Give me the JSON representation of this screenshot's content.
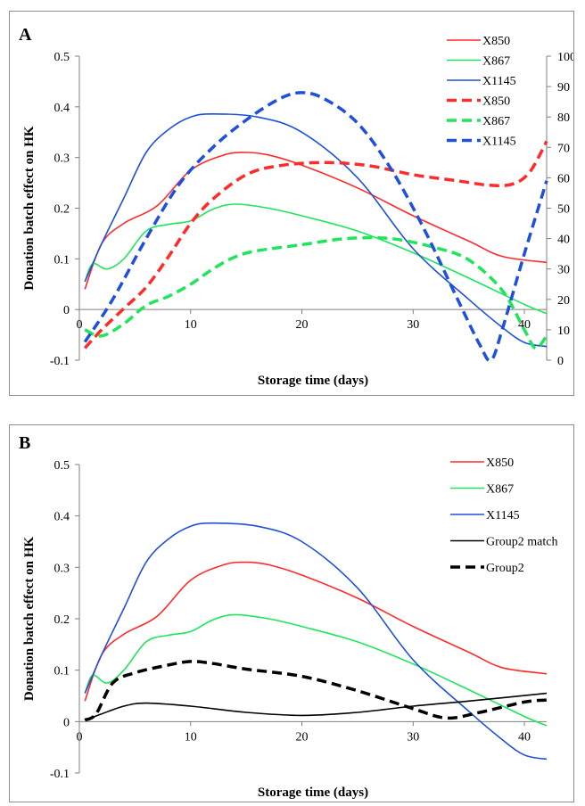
{
  "chart_data": [
    {
      "panel_label": "A",
      "type": "line",
      "xlabel": "Storage time (days)",
      "ylabel": "Donation batch effect on HK",
      "xlim": [
        0,
        42
      ],
      "ylim": [
        -0.1,
        0.5
      ],
      "y2lim": [
        0,
        100
      ],
      "x_ticks": [
        "0",
        "10",
        "20",
        "30",
        "40"
      ],
      "y_ticks": [
        "-0.1",
        "0",
        "0.1",
        "0.2",
        "0.3",
        "0.4",
        "0.5"
      ],
      "y2_ticks": [
        "0",
        "10",
        "20",
        "30",
        "40",
        "50",
        "60",
        "70",
        "80",
        "90",
        "100"
      ],
      "grid": false,
      "legend_position": "top-right",
      "series": [
        {
          "name": "X850",
          "axis": "left",
          "style": "solid",
          "color": "#ff2a2a",
          "points": [
            [
              0.5,
              0.04
            ],
            [
              2,
              0.13
            ],
            [
              4,
              0.17
            ],
            [
              7,
              0.205
            ],
            [
              10,
              0.275
            ],
            [
              13,
              0.305
            ],
            [
              15,
              0.31
            ],
            [
              17,
              0.305
            ],
            [
              20,
              0.285
            ],
            [
              25,
              0.24
            ],
            [
              30,
              0.185
            ],
            [
              35,
              0.135
            ],
            [
              38,
              0.105
            ],
            [
              42,
              0.093
            ]
          ]
        },
        {
          "name": "X867",
          "axis": "left",
          "style": "solid",
          "color": "#1ee65a",
          "points": [
            [
              0.5,
              0.055
            ],
            [
              1.2,
              0.09
            ],
            [
              2.5,
              0.08
            ],
            [
              4,
              0.1
            ],
            [
              6,
              0.155
            ],
            [
              8,
              0.168
            ],
            [
              10,
              0.175
            ],
            [
              12,
              0.198
            ],
            [
              14,
              0.208
            ],
            [
              17,
              0.2
            ],
            [
              20,
              0.185
            ],
            [
              25,
              0.155
            ],
            [
              30,
              0.112
            ],
            [
              35,
              0.062
            ],
            [
              40,
              0.01
            ],
            [
              42,
              -0.008
            ]
          ]
        },
        {
          "name": "X1145",
          "axis": "left",
          "style": "solid",
          "color": "#1e50dc",
          "points": [
            [
              0.5,
              0.055
            ],
            [
              2,
              0.13
            ],
            [
              4,
              0.22
            ],
            [
              6,
              0.31
            ],
            [
              8,
              0.355
            ],
            [
              10,
              0.38
            ],
            [
              12,
              0.386
            ],
            [
              16,
              0.38
            ],
            [
              20,
              0.35
            ],
            [
              25,
              0.26
            ],
            [
              30,
              0.12
            ],
            [
              35,
              0.02
            ],
            [
              38,
              -0.035
            ],
            [
              40,
              -0.065
            ],
            [
              42,
              -0.073
            ]
          ]
        },
        {
          "name": "X850",
          "axis": "right",
          "style": "dashed",
          "color": "#ff2a2a",
          "points": [
            [
              0.5,
              4
            ],
            [
              2,
              10
            ],
            [
              4,
              17
            ],
            [
              6,
              24
            ],
            [
              8,
              34
            ],
            [
              10,
              45
            ],
            [
              12,
              53
            ],
            [
              15,
              61
            ],
            [
              18,
              64
            ],
            [
              22,
              65
            ],
            [
              26,
              64
            ],
            [
              30,
              61
            ],
            [
              34,
              59
            ],
            [
              37,
              57.5
            ],
            [
              39,
              58
            ],
            [
              40.5,
              62
            ],
            [
              42,
              72
            ]
          ]
        },
        {
          "name": "X867",
          "axis": "right",
          "style": "dashed",
          "color": "#1ee65a",
          "points": [
            [
              0.5,
              10
            ],
            [
              2,
              8
            ],
            [
              4,
              12
            ],
            [
              6,
              18
            ],
            [
              8,
              21
            ],
            [
              10,
              25
            ],
            [
              12,
              30
            ],
            [
              14,
              34
            ],
            [
              16,
              36
            ],
            [
              20,
              38
            ],
            [
              24,
              40
            ],
            [
              28,
              40
            ],
            [
              32,
              37
            ],
            [
              35,
              33
            ],
            [
              38,
              23
            ],
            [
              40,
              10
            ],
            [
              41,
              4
            ],
            [
              42,
              8
            ]
          ]
        },
        {
          "name": "X1145",
          "axis": "right",
          "style": "dashed",
          "color": "#1e50dc",
          "points": [
            [
              0.5,
              6
            ],
            [
              3,
              20
            ],
            [
              6,
              40
            ],
            [
              9,
              58
            ],
            [
              12,
              70
            ],
            [
              15,
              79
            ],
            [
              18,
              86
            ],
            [
              20,
              88
            ],
            [
              22,
              86
            ],
            [
              25,
              78
            ],
            [
              28,
              63
            ],
            [
              31,
              43
            ],
            [
              34,
              20
            ],
            [
              36,
              5
            ],
            [
              37,
              0
            ],
            [
              38,
              10
            ],
            [
              40,
              35
            ],
            [
              42,
              59
            ]
          ]
        }
      ]
    },
    {
      "panel_label": "B",
      "type": "line",
      "xlabel": "Storage time (days)",
      "ylabel": "Donation batch effect on HK",
      "xlim": [
        0,
        42
      ],
      "ylim": [
        -0.1,
        0.5
      ],
      "x_ticks": [
        "0",
        "10",
        "20",
        "30",
        "40"
      ],
      "y_ticks": [
        "-0.1",
        "0",
        "0.1",
        "0.2",
        "0.3",
        "0.4",
        "0.5"
      ],
      "grid": false,
      "legend_position": "top-right",
      "series": [
        {
          "name": "X850",
          "style": "solid",
          "color": "#ff2a2a",
          "points": [
            [
              0.5,
              0.04
            ],
            [
              2,
              0.13
            ],
            [
              4,
              0.17
            ],
            [
              7,
              0.205
            ],
            [
              10,
              0.275
            ],
            [
              13,
              0.305
            ],
            [
              15,
              0.31
            ],
            [
              17,
              0.305
            ],
            [
              20,
              0.285
            ],
            [
              25,
              0.24
            ],
            [
              30,
              0.185
            ],
            [
              35,
              0.135
            ],
            [
              38,
              0.105
            ],
            [
              42,
              0.093
            ]
          ]
        },
        {
          "name": "X867",
          "style": "solid",
          "color": "#1ee65a",
          "points": [
            [
              0.5,
              0.055
            ],
            [
              1.2,
              0.09
            ],
            [
              2.5,
              0.075
            ],
            [
              4,
              0.1
            ],
            [
              6,
              0.155
            ],
            [
              8,
              0.168
            ],
            [
              10,
              0.175
            ],
            [
              12,
              0.198
            ],
            [
              14,
              0.208
            ],
            [
              17,
              0.2
            ],
            [
              20,
              0.185
            ],
            [
              25,
              0.155
            ],
            [
              30,
              0.112
            ],
            [
              35,
              0.062
            ],
            [
              40,
              0.01
            ],
            [
              42,
              -0.008
            ]
          ]
        },
        {
          "name": "X1145",
          "style": "solid",
          "color": "#1e50dc",
          "points": [
            [
              0.5,
              0.055
            ],
            [
              2,
              0.13
            ],
            [
              4,
              0.22
            ],
            [
              6,
              0.31
            ],
            [
              8,
              0.355
            ],
            [
              10,
              0.38
            ],
            [
              12,
              0.386
            ],
            [
              16,
              0.38
            ],
            [
              20,
              0.35
            ],
            [
              25,
              0.26
            ],
            [
              30,
              0.12
            ],
            [
              35,
              0.02
            ],
            [
              38,
              -0.035
            ],
            [
              40,
              -0.065
            ],
            [
              42,
              -0.073
            ]
          ]
        },
        {
          "name": "Group2 match",
          "style": "solid",
          "color": "#000000",
          "points": [
            [
              0.5,
              0.003
            ],
            [
              2,
              0.015
            ],
            [
              4,
              0.03
            ],
            [
              6,
              0.036
            ],
            [
              10,
              0.03
            ],
            [
              15,
              0.018
            ],
            [
              20,
              0.012
            ],
            [
              25,
              0.018
            ],
            [
              30,
              0.03
            ],
            [
              35,
              0.04
            ],
            [
              42,
              0.055
            ]
          ]
        },
        {
          "name": "Group2",
          "style": "dashed",
          "color": "#000000",
          "points": [
            [
              0.5,
              0.003
            ],
            [
              1.5,
              0.015
            ],
            [
              3,
              0.075
            ],
            [
              5,
              0.095
            ],
            [
              8,
              0.11
            ],
            [
              10,
              0.117
            ],
            [
              12,
              0.113
            ],
            [
              15,
              0.102
            ],
            [
              20,
              0.088
            ],
            [
              25,
              0.06
            ],
            [
              30,
              0.025
            ],
            [
              33,
              0.007
            ],
            [
              36,
              0.018
            ],
            [
              40,
              0.038
            ],
            [
              42,
              0.042
            ]
          ]
        }
      ]
    }
  ]
}
